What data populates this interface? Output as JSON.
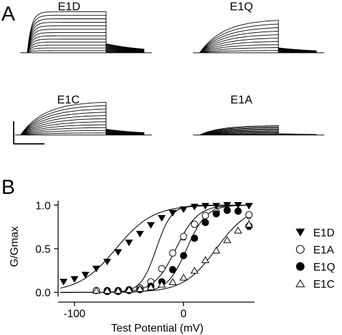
{
  "panel_a": {
    "letter": "A",
    "recordings": [
      {
        "label": "E1D",
        "peak": 1.0,
        "tail": 0.22,
        "steps": 13,
        "shape": "fast"
      },
      {
        "label": "E1Q",
        "peak": 0.82,
        "tail": 0.12,
        "steps": 10,
        "shape": "slow"
      },
      {
        "label": "E1C",
        "peak": 0.82,
        "tail": 0.14,
        "steps": 11,
        "shape": "slow"
      },
      {
        "label": "E1A",
        "peak": 0.23,
        "tail": 0.03,
        "steps": 10,
        "shape": "flat"
      }
    ]
  },
  "chart_data": {
    "type": "scatter",
    "panel_letter": "B",
    "xlabel": "Test Potential (mV)",
    "ylabel": "G/Gmax",
    "xlim": [
      -115,
      65
    ],
    "ylim": [
      -0.05,
      1.05
    ],
    "x_ticks": [
      -100,
      0
    ],
    "y_ticks": [
      0.0,
      0.5,
      1.0
    ],
    "y_tick_labels": [
      "0.0",
      "0.5",
      "1.0"
    ],
    "grid": false,
    "legend_position": "right",
    "series": [
      {
        "name": "E1D",
        "marker": "filled-down-triangle",
        "x": [
          -110,
          -100,
          -90,
          -80,
          -70,
          -60,
          -50,
          -40,
          -30,
          -20,
          -10,
          0,
          10,
          20,
          30,
          40,
          50,
          60
        ],
        "y": [
          0.12,
          0.15,
          0.2,
          0.27,
          0.35,
          0.46,
          0.57,
          0.67,
          0.77,
          0.85,
          0.91,
          0.95,
          0.98,
          0.99,
          0.99,
          1.0,
          1.0,
          0.99
        ],
        "err": [],
        "fit": {
          "v_half": -62,
          "k": 17
        }
      },
      {
        "name": "E1A",
        "marker": "open-circle",
        "x": [
          -80,
          -70,
          -60,
          -50,
          -40,
          -30,
          -20,
          -10,
          0,
          10,
          20,
          30,
          40,
          50,
          60
        ],
        "y": [
          0.02,
          0.02,
          0.02,
          0.03,
          0.05,
          0.12,
          0.27,
          0.45,
          0.64,
          0.78,
          0.88,
          0.92,
          0.94,
          0.93,
          0.89
        ],
        "err": [
          0,
          0,
          0,
          0,
          0,
          0,
          0.02,
          0.03,
          0.04,
          0.03,
          0.03,
          0.02,
          0.02,
          0.03,
          0.04
        ],
        "fit": {
          "v_half": -7,
          "k": 10
        }
      },
      {
        "name": "E1Q",
        "marker": "filled-circle",
        "x": [
          -70,
          -60,
          -50,
          -40,
          -30,
          -20,
          -10,
          0,
          10,
          20,
          30,
          40,
          50,
          60
        ],
        "y": [
          0.01,
          0.01,
          0.02,
          0.03,
          0.07,
          0.12,
          0.26,
          0.42,
          0.62,
          0.8,
          0.9,
          0.94,
          0.93,
          0.76
        ],
        "err": [
          0,
          0,
          0,
          0,
          0,
          0,
          0,
          0,
          0,
          0,
          0,
          0,
          0,
          0.04
        ],
        "fit": {
          "v_half": 3,
          "k": 9
        }
      },
      {
        "name": "E1C",
        "marker": "open-triangle",
        "x": [
          -80,
          -70,
          -60,
          -50,
          -40,
          -30,
          -20,
          -10,
          0,
          10,
          20,
          30,
          40,
          50,
          60
        ],
        "y": [
          0.02,
          0.02,
          0.02,
          0.03,
          0.04,
          0.06,
          0.09,
          0.12,
          0.17,
          0.25,
          0.37,
          0.48,
          0.6,
          0.71,
          0.78
        ],
        "err": [
          0,
          0,
          0,
          0,
          0,
          0,
          0,
          0,
          0,
          0,
          0,
          0,
          0,
          0,
          0.06
        ],
        "fit": {
          "v_half": 30,
          "k": 15
        }
      }
    ],
    "extra_curves": [
      {
        "v_half": -25,
        "k": 7
      }
    ]
  }
}
